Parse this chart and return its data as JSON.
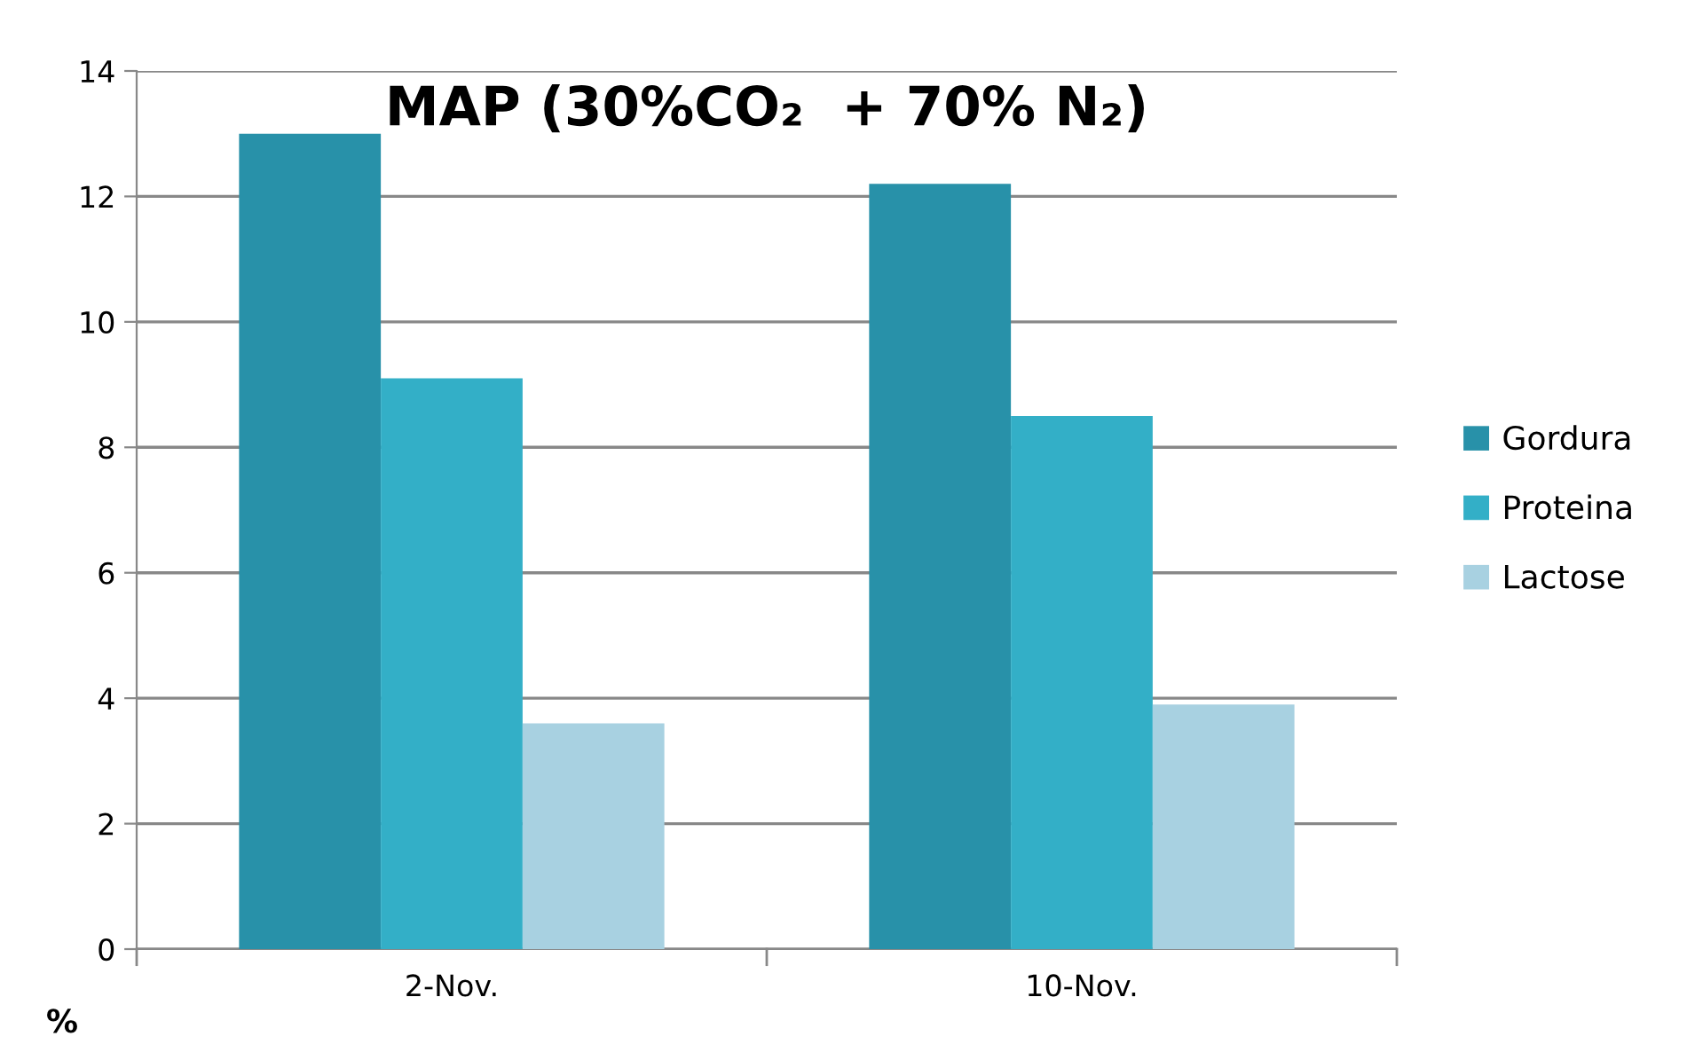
{
  "chart_data": {
    "type": "bar",
    "title": "MAP (30%CO₂  + 70% N₂)",
    "ylabel": "%",
    "categories": [
      "2-Nov.",
      "10-Nov."
    ],
    "series": [
      {
        "name": "Gordura",
        "color": "#2891a9",
        "values": [
          13.0,
          12.2
        ]
      },
      {
        "name": "Proteina",
        "color": "#33afc7",
        "values": [
          9.1,
          8.5
        ]
      },
      {
        "name": "Lactose",
        "color": "#a8d1e1",
        "values": [
          3.6,
          3.9
        ]
      }
    ],
    "ylim": [
      0,
      14
    ],
    "yticks": [
      0,
      2,
      4,
      6,
      8,
      10,
      12,
      14
    ],
    "grid": "y",
    "legend": "right"
  }
}
